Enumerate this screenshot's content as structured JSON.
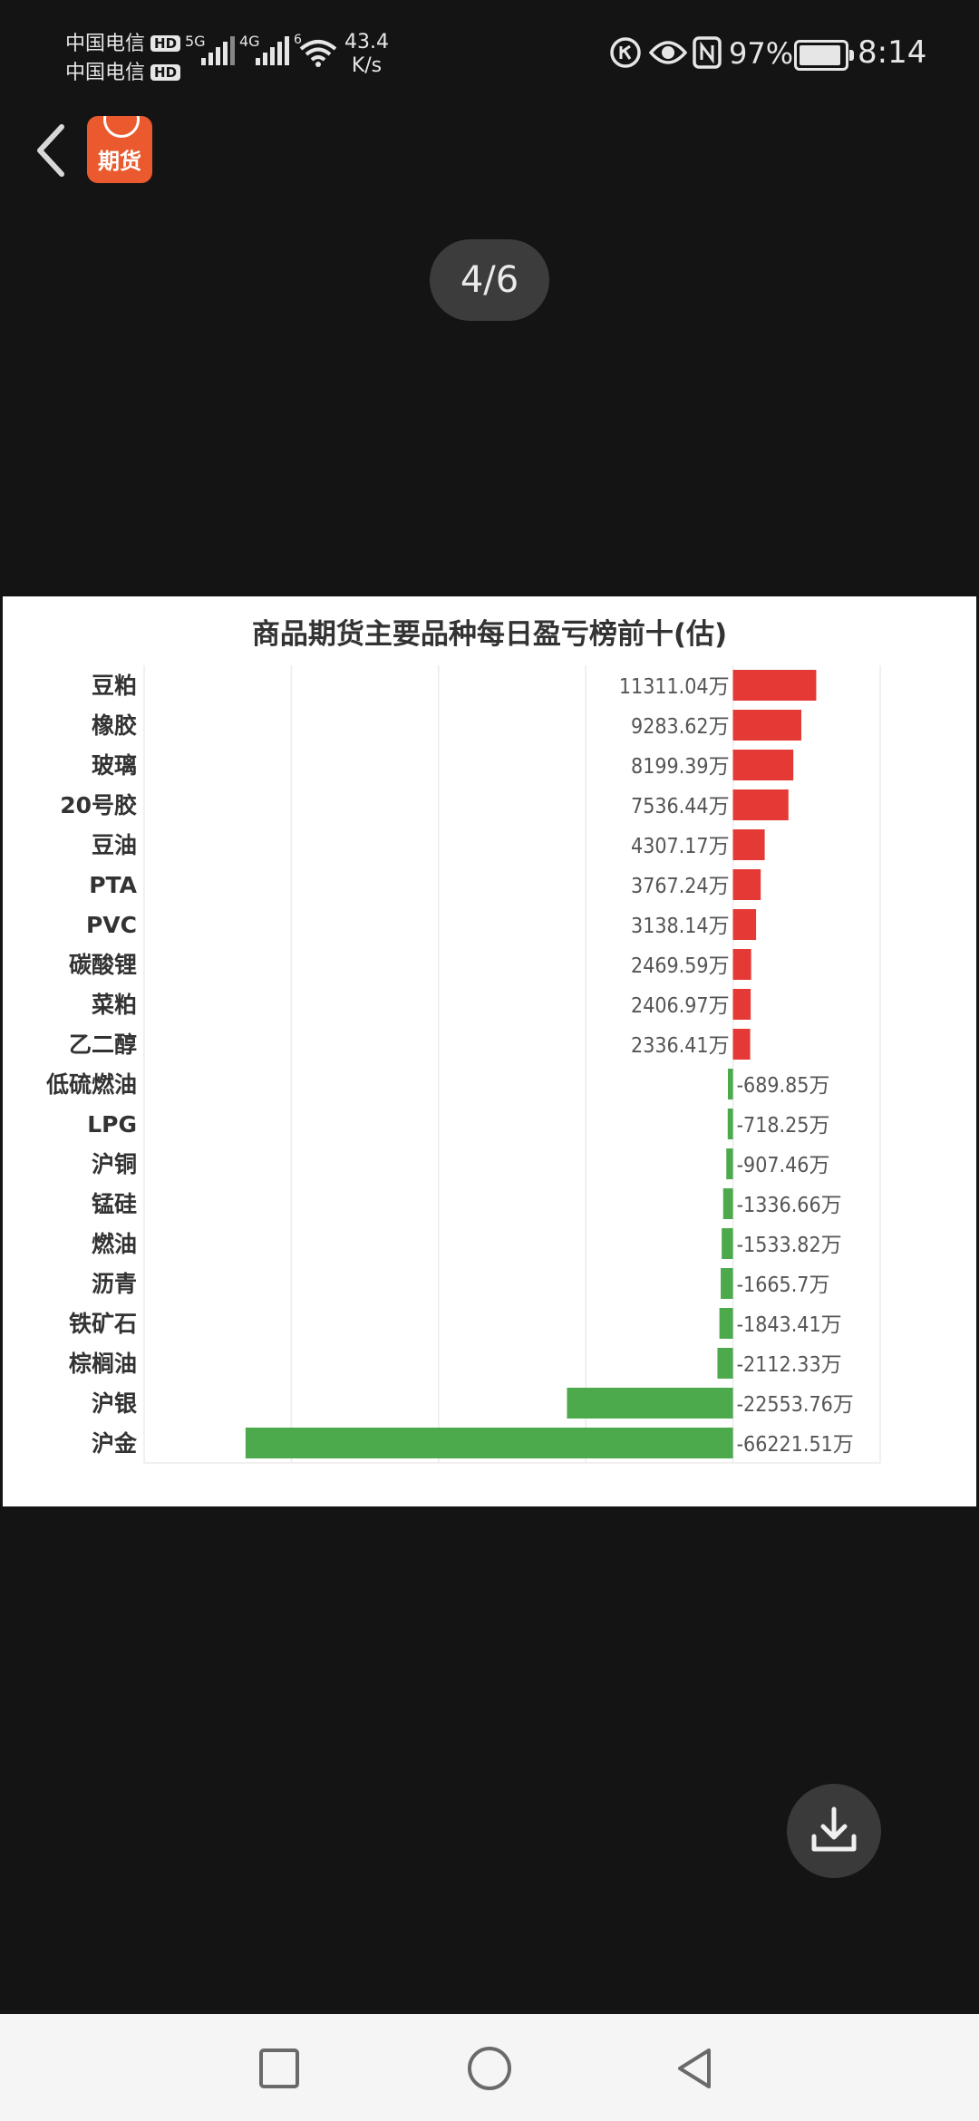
{
  "status_bar": {
    "carrier1": "中国电信",
    "carrier2": "中国电信",
    "hd_badge": "HD",
    "net1": "5G",
    "net2": "4G",
    "wifi_sup": "6",
    "speed_value": "43.4",
    "speed_unit": "K/s",
    "battery_percent": "97%",
    "battery_level": 0.97,
    "time": "8:14",
    "icons": [
      "data-saver-icon",
      "eye-icon",
      "nfc-icon"
    ]
  },
  "header": {
    "back_icon": "chevron-left-icon",
    "app_logo_text": "期货"
  },
  "viewer": {
    "page_indicator": "4/6"
  },
  "chart_data": {
    "type": "bar",
    "orientation": "horizontal",
    "title": "商品期货主要品种每日盈亏榜前十(估)",
    "categories": [
      "豆粕",
      "橡胶",
      "玻璃",
      "20号胶",
      "豆油",
      "PTA",
      "PVC",
      "碳酸锂",
      "菜粕",
      "乙二醇",
      "低硫燃油",
      "LPG",
      "沪铜",
      "锰硅",
      "燃油",
      "沥青",
      "铁矿石",
      "棕榈油",
      "沪银",
      "沪金"
    ],
    "values": [
      11311.04,
      9283.62,
      8199.39,
      7536.44,
      4307.17,
      3767.24,
      3138.14,
      2469.59,
      2406.97,
      2336.41,
      -689.85,
      -718.25,
      -907.46,
      -1336.66,
      -1533.82,
      -1665.7,
      -1843.41,
      -2112.33,
      -22553.76,
      -66221.51
    ],
    "labels": [
      "11311.04万",
      "9283.62万",
      "8199.39万",
      "7536.44万",
      "4307.17万",
      "3767.24万",
      "3138.14万",
      "2469.59万",
      "2406.97万",
      "2336.41万",
      "-689.85万",
      "-718.25万",
      "-907.46万",
      "-1336.66万",
      "-1533.82万",
      "-1665.7万",
      "-1843.41万",
      "-2112.33万",
      "-22553.76万",
      "-66221.51万"
    ],
    "unit": "万",
    "xlim": [
      -80000,
      20000
    ],
    "grid": true,
    "legend": "none",
    "colors": {
      "positive": "#e53935",
      "negative": "#4caa4c"
    }
  },
  "actions": {
    "download_icon": "download-icon"
  },
  "nav_bar": {
    "recents_icon": "square-icon",
    "home_icon": "circle-icon",
    "back_icon": "triangle-back-icon"
  }
}
